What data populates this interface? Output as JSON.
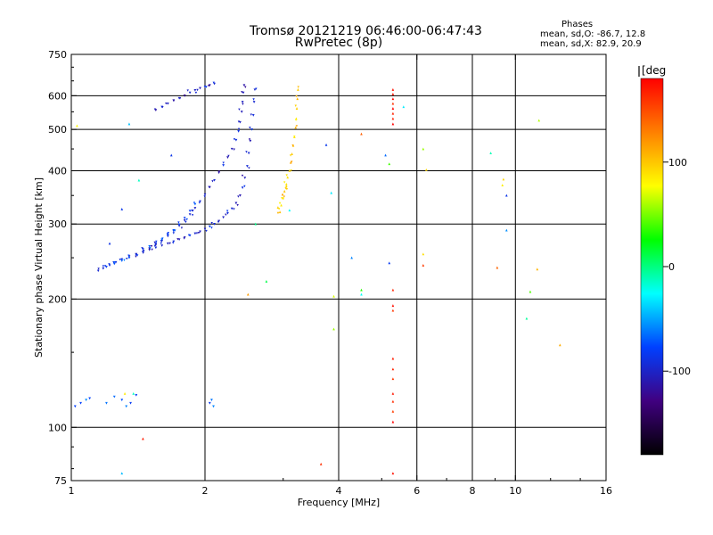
{
  "header": {
    "title": "Tromsø 20121219 06:46:00-06:47:43",
    "subtitle": "RwPretec (8p)"
  },
  "phases_box": {
    "heading": "Phases",
    "line_o": "mean, sd,O: -86.7, 12.8",
    "line_x": "mean, sd,X:  82.9, 20.9"
  },
  "colorbar": {
    "unit_label": "[deg",
    "ticks": [
      {
        "value": 100,
        "label": "100"
      },
      {
        "value": 0,
        "label": "0"
      },
      {
        "value": -100,
        "label": "-100"
      }
    ],
    "range": [
      -180,
      180
    ],
    "colors": [
      "#ff0000",
      "#ff8000",
      "#ffff00",
      "#00ff00",
      "#00ffff",
      "#0040ff",
      "#400080",
      "#000000"
    ]
  },
  "chart_data": {
    "type": "scatter",
    "title": "Tromsø 20121219 06:46:00-06:47:43",
    "subtitle": "RwPretec (8p)",
    "xlabel": "Frequency [MHz]",
    "ylabel": "Stationary phase Virtual Height [km]",
    "xscale": "log",
    "yscale": "log",
    "xlim": [
      1,
      16
    ],
    "ylim": [
      75,
      750
    ],
    "grid": true,
    "xticks": [
      {
        "value": 1,
        "label": "1"
      },
      {
        "value": 2,
        "label": "2"
      },
      {
        "value": 4,
        "label": "4"
      },
      {
        "value": 6,
        "label": "6"
      },
      {
        "value": 8,
        "label": "8"
      },
      {
        "value": 10,
        "label": "10"
      },
      {
        "value": 16,
        "label": "16"
      }
    ],
    "yticks": [
      {
        "value": 75,
        "label": "75"
      },
      {
        "value": 100,
        "label": "100"
      },
      {
        "value": 200,
        "label": "200"
      },
      {
        "value": 300,
        "label": "300"
      },
      {
        "value": 400,
        "label": "400"
      },
      {
        "value": 500,
        "label": "500"
      },
      {
        "value": 600,
        "label": "600"
      },
      {
        "value": 750,
        "label": "750"
      }
    ],
    "series": [
      {
        "name": "O-mode lower trace",
        "mode": "o",
        "phase_deg": -95,
        "points": [
          [
            1.15,
            233
          ],
          [
            1.18,
            236
          ],
          [
            1.22,
            240
          ],
          [
            1.26,
            244
          ],
          [
            1.3,
            248
          ],
          [
            1.35,
            252
          ],
          [
            1.4,
            255
          ],
          [
            1.45,
            258
          ],
          [
            1.5,
            261
          ],
          [
            1.55,
            264
          ],
          [
            1.6,
            267
          ],
          [
            1.65,
            270
          ],
          [
            1.7,
            273
          ],
          [
            1.75,
            276
          ],
          [
            1.8,
            279
          ],
          [
            1.85,
            282
          ],
          [
            1.9,
            285
          ],
          [
            1.95,
            288
          ],
          [
            2.0,
            292
          ],
          [
            2.05,
            296
          ],
          [
            2.1,
            300
          ],
          [
            2.15,
            305
          ],
          [
            2.2,
            311
          ],
          [
            2.25,
            318
          ],
          [
            2.3,
            326
          ],
          [
            2.35,
            336
          ],
          [
            2.4,
            350
          ],
          [
            2.43,
            365
          ],
          [
            2.46,
            385
          ],
          [
            2.49,
            410
          ],
          [
            2.51,
            440
          ],
          [
            2.53,
            470
          ],
          [
            2.55,
            500
          ],
          [
            2.57,
            540
          ],
          [
            2.58,
            580
          ],
          [
            2.59,
            620
          ]
        ]
      },
      {
        "name": "O-mode upper trace",
        "mode": "o",
        "phase_deg": -100,
        "points": [
          [
            1.45,
            258
          ],
          [
            1.5,
            263
          ],
          [
            1.55,
            268
          ],
          [
            1.6,
            274
          ],
          [
            1.65,
            281
          ],
          [
            1.7,
            289
          ],
          [
            1.75,
            297
          ],
          [
            1.8,
            306
          ],
          [
            1.85,
            316
          ],
          [
            1.9,
            327
          ],
          [
            1.95,
            339
          ],
          [
            2.0,
            352
          ],
          [
            2.05,
            366
          ],
          [
            2.1,
            380
          ],
          [
            2.15,
            396
          ],
          [
            2.2,
            412
          ],
          [
            2.25,
            430
          ],
          [
            2.3,
            450
          ],
          [
            2.35,
            472
          ],
          [
            2.38,
            495
          ],
          [
            2.4,
            520
          ],
          [
            2.42,
            550
          ],
          [
            2.43,
            580
          ],
          [
            2.44,
            610
          ],
          [
            2.45,
            635
          ]
        ]
      },
      {
        "name": "O-mode lower spread",
        "mode": "o",
        "phase_deg": -80,
        "points": [
          [
            1.2,
            238
          ],
          [
            1.25,
            242
          ],
          [
            1.3,
            246
          ],
          [
            1.35,
            250
          ],
          [
            1.4,
            254
          ],
          [
            1.45,
            262
          ],
          [
            1.5,
            266
          ],
          [
            1.55,
            270
          ],
          [
            1.6,
            276
          ],
          [
            1.65,
            283
          ],
          [
            1.7,
            290
          ],
          [
            1.75,
            299
          ],
          [
            1.8,
            310
          ],
          [
            1.85,
            322
          ],
          [
            1.9,
            334
          ]
        ]
      },
      {
        "name": "Upper arc trace",
        "mode": "o",
        "phase_deg": -100,
        "points": [
          [
            1.55,
            555
          ],
          [
            1.6,
            565
          ],
          [
            1.65,
            575
          ],
          [
            1.7,
            585
          ],
          [
            1.75,
            592
          ],
          [
            1.8,
            600
          ],
          [
            1.85,
            610
          ],
          [
            1.9,
            618
          ],
          [
            1.95,
            625
          ],
          [
            2.0,
            630
          ],
          [
            2.05,
            635
          ],
          [
            2.1,
            640
          ]
        ]
      },
      {
        "name": "X-mode trace",
        "mode": "x",
        "phase_deg": 100,
        "points": [
          [
            2.95,
            320
          ],
          [
            2.97,
            332
          ],
          [
            3.0,
            345
          ],
          [
            3.02,
            358
          ],
          [
            3.05,
            372
          ],
          [
            3.07,
            386
          ],
          [
            3.1,
            400
          ],
          [
            3.12,
            418
          ],
          [
            3.14,
            438
          ],
          [
            3.16,
            458
          ],
          [
            3.18,
            480
          ],
          [
            3.2,
            505
          ],
          [
            3.21,
            530
          ],
          [
            3.22,
            560
          ],
          [
            3.23,
            590
          ],
          [
            3.24,
            620
          ],
          [
            2.92,
            328
          ],
          [
            2.99,
            352
          ],
          [
            3.05,
            368
          ]
        ]
      },
      {
        "name": "Red vertical column (upper)",
        "mode": "x",
        "phase_deg": 170,
        "points": [
          [
            5.3,
            515
          ],
          [
            5.3,
            530
          ],
          [
            5.3,
            545
          ],
          [
            5.3,
            560
          ],
          [
            5.3,
            575
          ],
          [
            5.3,
            590
          ],
          [
            5.3,
            605
          ],
          [
            5.3,
            620
          ]
        ]
      },
      {
        "name": "Red vertical column (lower)",
        "mode": "x",
        "phase_deg": 170,
        "points": [
          [
            5.3,
            210
          ],
          [
            5.3,
            193
          ],
          [
            5.3,
            188
          ],
          [
            5.3,
            145
          ],
          [
            5.3,
            137
          ],
          [
            5.3,
            130
          ],
          [
            5.3,
            120
          ],
          [
            5.3,
            115
          ],
          [
            5.3,
            109
          ],
          [
            5.3,
            103
          ],
          [
            5.3,
            78
          ]
        ]
      },
      {
        "name": "Sporadic low echoes",
        "mode": "o",
        "phase_deg": -70,
        "points": [
          [
            1.02,
            112
          ],
          [
            1.05,
            114
          ],
          [
            1.08,
            116
          ],
          [
            1.1,
            117
          ],
          [
            1.2,
            114
          ],
          [
            1.25,
            118
          ],
          [
            1.3,
            116
          ],
          [
            1.33,
            112
          ],
          [
            1.36,
            114
          ],
          [
            1.4,
            119
          ],
          [
            2.05,
            114
          ],
          [
            2.07,
            116
          ],
          [
            2.09,
            112
          ]
        ]
      },
      {
        "name": "Scattered noise",
        "mode": "x",
        "phase_deg": 40,
        "points": [
          [
            1.03,
            510
          ],
          [
            1.22,
            270
          ],
          [
            1.3,
            325
          ],
          [
            1.35,
            515
          ],
          [
            1.42,
            380
          ],
          [
            1.45,
            94
          ],
          [
            1.68,
            435
          ],
          [
            3.75,
            460
          ],
          [
            3.85,
            355
          ],
          [
            3.9,
            170
          ],
          [
            3.9,
            203
          ],
          [
            4.28,
            250
          ],
          [
            4.5,
            205
          ],
          [
            4.5,
            210
          ],
          [
            5.1,
            435
          ],
          [
            5.2,
            415
          ],
          [
            5.2,
            243
          ],
          [
            6.2,
            450
          ],
          [
            6.3,
            402
          ],
          [
            6.2,
            255
          ],
          [
            6.2,
            240
          ],
          [
            8.8,
            440
          ],
          [
            9.1,
            237
          ],
          [
            9.35,
            370
          ],
          [
            9.4,
            382
          ],
          [
            9.55,
            350
          ],
          [
            9.55,
            290
          ],
          [
            10.6,
            180
          ],
          [
            10.8,
            208
          ],
          [
            11.2,
            235
          ],
          [
            11.3,
            525
          ],
          [
            12.6,
            156
          ],
          [
            3.65,
            82
          ],
          [
            4.5,
            488
          ],
          [
            5.6,
            565
          ],
          [
            1.3,
            78
          ],
          [
            1.32,
            120
          ],
          [
            1.38,
            120
          ],
          [
            2.5,
            205
          ],
          [
            2.6,
            300
          ],
          [
            2.75,
            220
          ],
          [
            3.1,
            323
          ]
        ]
      }
    ]
  }
}
